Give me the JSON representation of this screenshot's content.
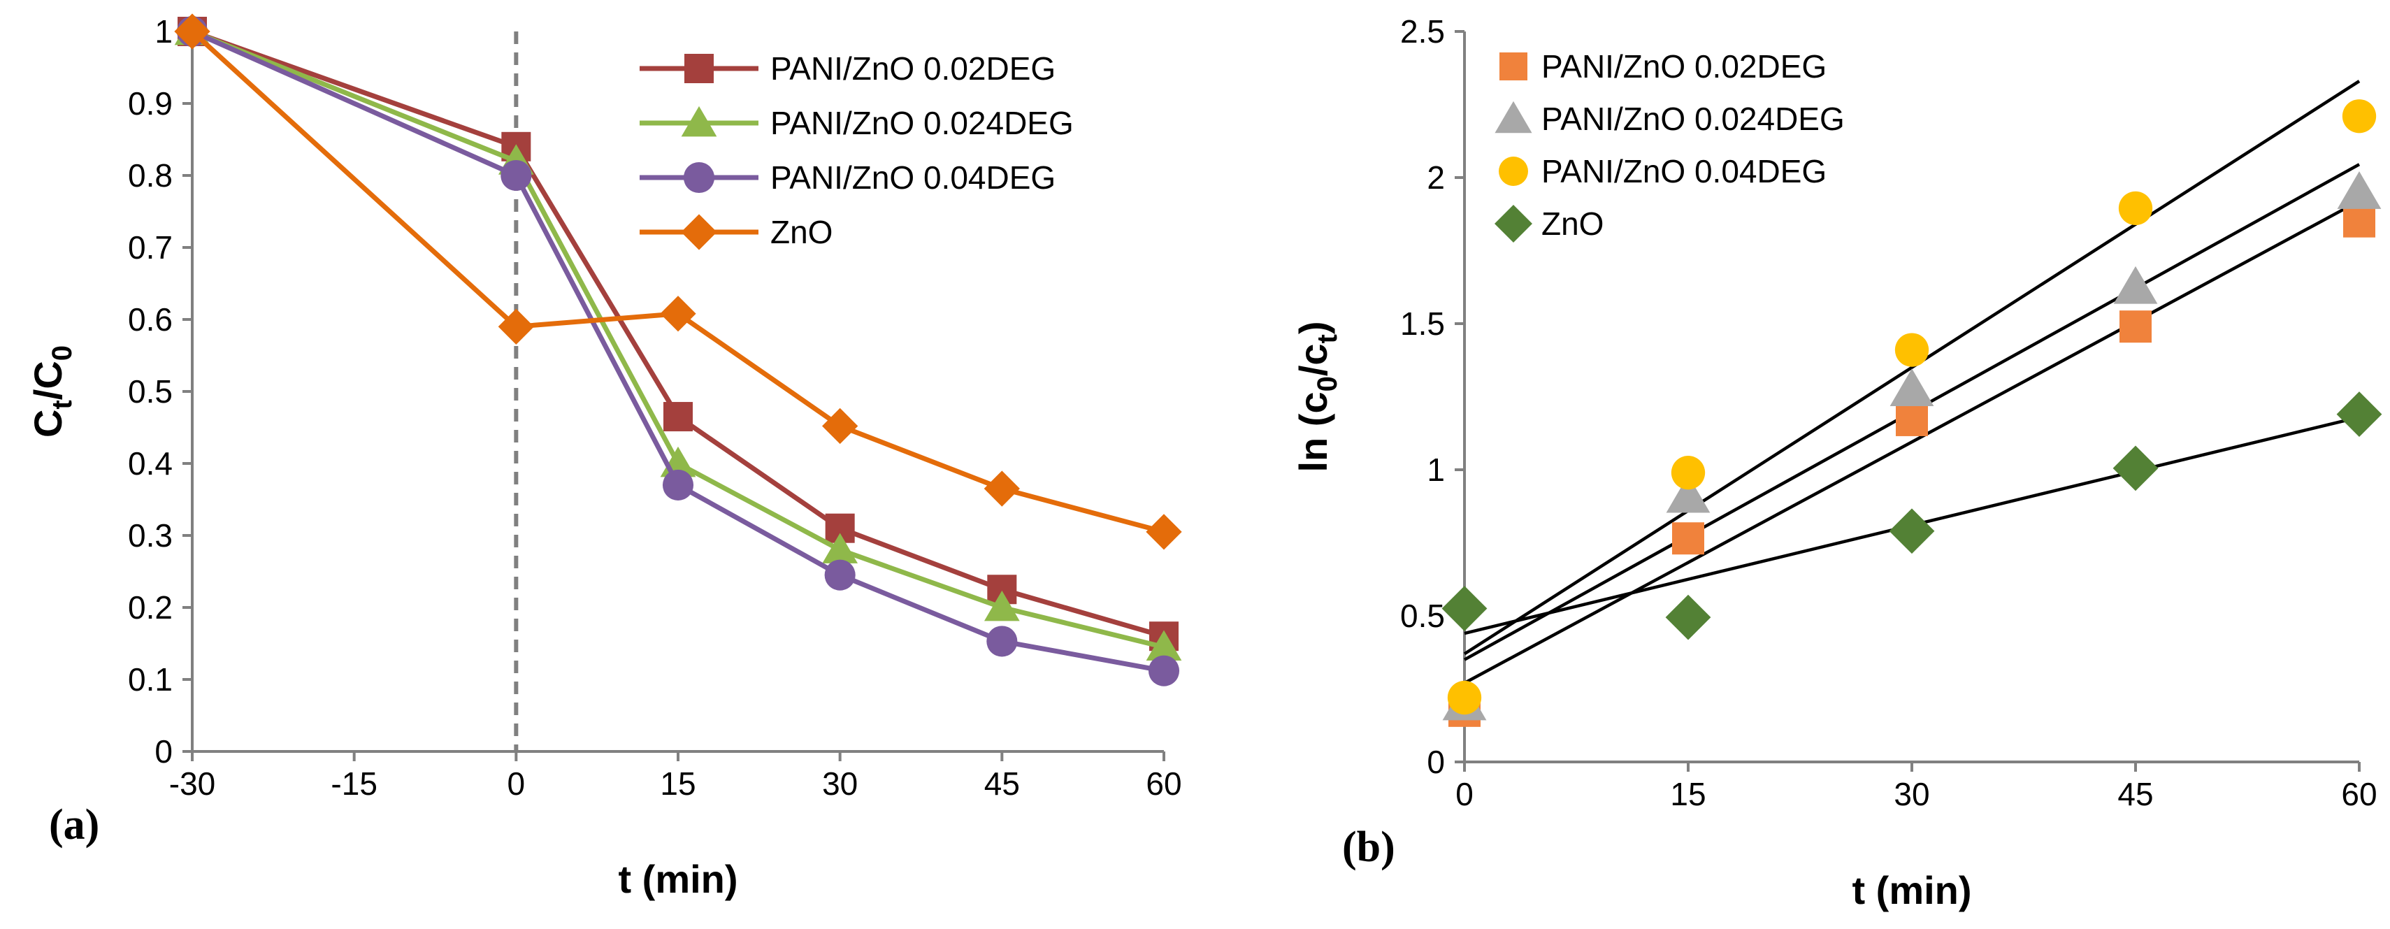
{
  "chart_data": [
    {
      "panel_label": "(a)",
      "type": "line",
      "xlabel": "t (min)",
      "ylabel": {
        "base": "C",
        "sub1": "t",
        "slash": "/C",
        "sub2": "0"
      },
      "x": [
        -30,
        0,
        15,
        30,
        45,
        60
      ],
      "xlim": [
        -30,
        60
      ],
      "ylim": [
        0,
        1
      ],
      "xticks": [
        "-30",
        "-15",
        "0",
        "15",
        "30",
        "45",
        "60"
      ],
      "yticks": [
        "0",
        "0.1",
        "0.2",
        "0.3",
        "0.4",
        "0.5",
        "0.6",
        "0.7",
        "0.8",
        "0.9",
        "1"
      ],
      "grid": false,
      "legend_position": "top-right",
      "annotation": "dashed vertical line at t = 0",
      "series": [
        {
          "name": "PANI/ZnO 0.02DEG",
          "color": "#a4403d",
          "marker": "square",
          "values": [
            1.0,
            0.84,
            0.465,
            0.31,
            0.225,
            0.16
          ]
        },
        {
          "name": "PANI/ZnO 0.024DEG",
          "color": "#8fb84a",
          "marker": "triangle",
          "values": [
            1.0,
            0.82,
            0.4,
            0.28,
            0.2,
            0.145
          ]
        },
        {
          "name": "PANI/ZnO 0.04DEG",
          "color": "#7a5b9e",
          "marker": "circle",
          "values": [
            1.0,
            0.8,
            0.37,
            0.245,
            0.153,
            0.112
          ]
        },
        {
          "name": "ZnO",
          "color": "#e46c0a",
          "marker": "diamond",
          "values": [
            1.0,
            0.59,
            0.608,
            0.452,
            0.365,
            0.305
          ]
        }
      ]
    },
    {
      "panel_label": "(b)",
      "type": "scatter",
      "xlabel": "t (min)",
      "ylabel": {
        "base": "ln (c",
        "sub1": "0",
        "slash": "/c",
        "sub2": "t",
        "close": ")"
      },
      "x": [
        0,
        15,
        30,
        45,
        60
      ],
      "xlim": [
        0,
        60
      ],
      "ylim": [
        0,
        2.5
      ],
      "xticks": [
        "0",
        "15",
        "30",
        "45",
        "60"
      ],
      "yticks": [
        "0",
        "0.5",
        "1",
        "1.5",
        "2",
        "2.5"
      ],
      "grid": false,
      "legend_position": "top-left",
      "series": [
        {
          "name": "PANI/ZnO 0.02DEG",
          "color": "#f0823c",
          "marker": "square",
          "values": [
            0.175,
            0.765,
            1.17,
            1.49,
            1.85
          ],
          "fit": [
            0.27,
            1.92
          ]
        },
        {
          "name": "PANI/ZnO 0.024DEG",
          "color": "#a8a8a8",
          "marker": "triangle",
          "values": [
            0.2,
            0.91,
            1.275,
            1.625,
            1.95
          ],
          "fit": [
            0.35,
            2.045
          ]
        },
        {
          "name": "PANI/ZnO 0.04DEG",
          "color": "#ffc000",
          "marker": "circle",
          "values": [
            0.22,
            0.99,
            1.41,
            1.895,
            2.21
          ],
          "fit": [
            0.37,
            2.33
          ]
        },
        {
          "name": "ZnO",
          "color": "#538135",
          "marker": "diamond",
          "values": [
            0.525,
            0.495,
            0.79,
            1.005,
            1.19
          ],
          "fit": [
            0.44,
            1.18
          ]
        }
      ]
    }
  ]
}
